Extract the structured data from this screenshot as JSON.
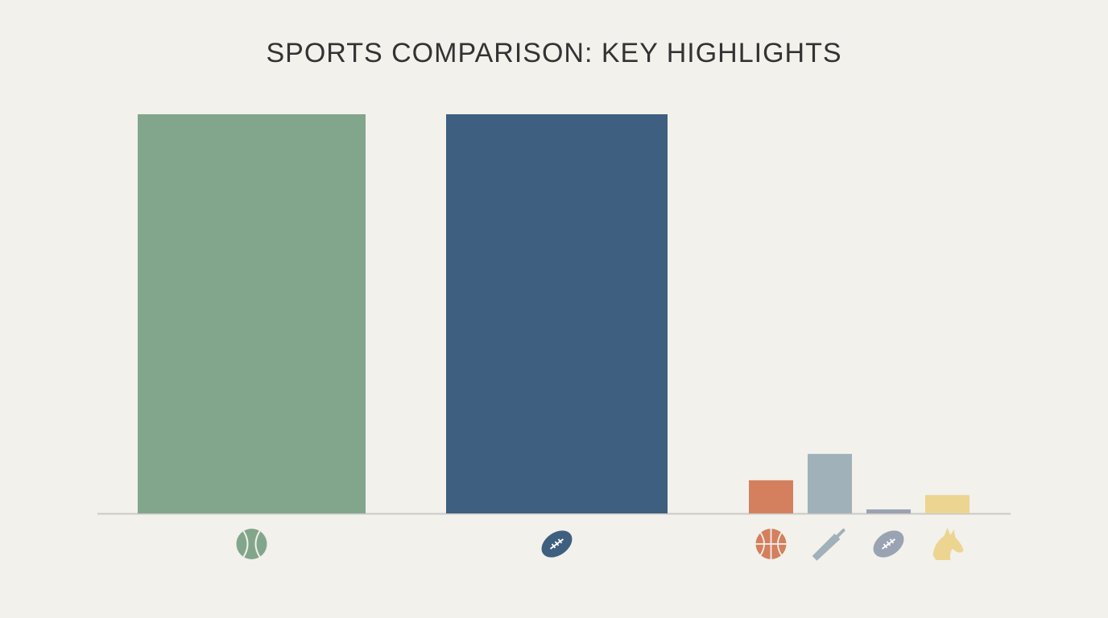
{
  "chart_data": {
    "type": "bar",
    "title": "SPORTS COMPARISON: KEY HIGHLIGHTS",
    "categories": [
      null,
      null,
      null,
      null,
      null,
      null
    ],
    "values": [
      100,
      100,
      8.3,
      14.9,
      1,
      4.6
    ],
    "colors": [
      "#82a68c",
      "#3e5f7f",
      "#d4805e",
      "#a0b1ba",
      "#9aa3b2",
      "#ecd591"
    ]
  }
}
